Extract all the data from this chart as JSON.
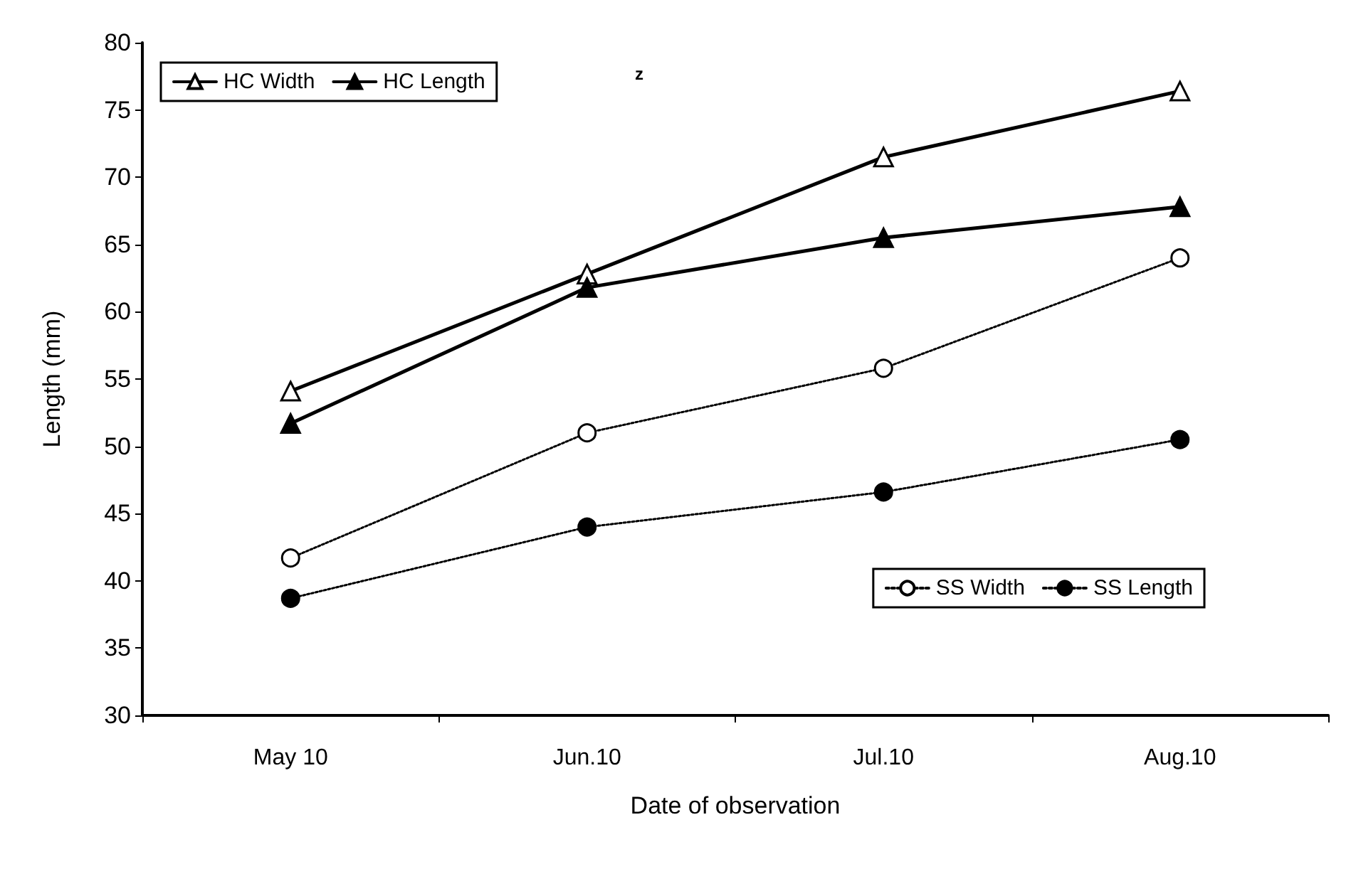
{
  "chart_data": {
    "type": "line",
    "xlabel": "Date of observation",
    "ylabel": "Length (mm)",
    "categories": [
      "May 10",
      "Jun.10",
      "Jul.10",
      "Aug.10"
    ],
    "series": [
      {
        "name": "HC Width",
        "color": "#000000",
        "marker": "triangle",
        "line_style": "solid",
        "values": [
          54.1,
          62.8,
          71.5,
          76.4
        ]
      },
      {
        "name": "HC Length",
        "color": "#000000",
        "marker": "triangle",
        "line_style": "solid",
        "values": [
          51.7,
          61.8,
          65.5,
          67.8
        ]
      },
      {
        "name": "SS Width",
        "color": "#000000",
        "marker": "circle",
        "line_style": "dotted",
        "values": [
          41.7,
          51.0,
          55.8,
          64.0
        ]
      },
      {
        "name": "SS Length",
        "color": "#000000",
        "marker": "circle",
        "line_style": "dotted",
        "values": [
          38.7,
          44.0,
          46.6,
          50.5
        ]
      }
    ],
    "ylim": [
      30,
      80
    ],
    "yticks": [
      30,
      35,
      40,
      45,
      50,
      55,
      60,
      65,
      70,
      75,
      80
    ],
    "grid": false,
    "legend": "top left",
    "annotations": [
      "z"
    ]
  }
}
